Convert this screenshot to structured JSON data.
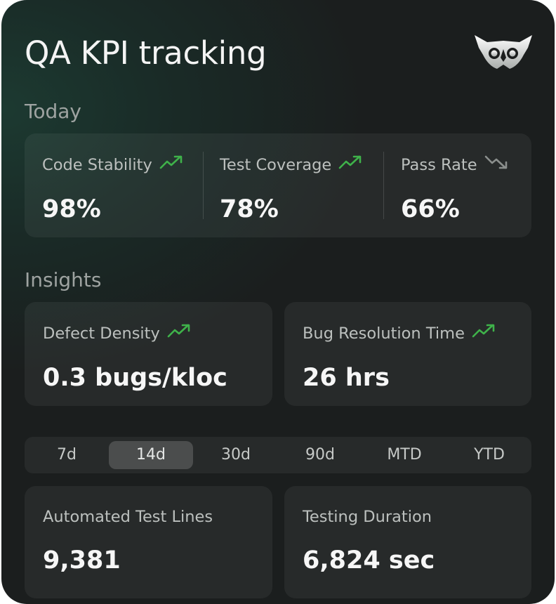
{
  "header": {
    "title": "QA KPI tracking",
    "logo_icon": "owl-logo-icon"
  },
  "today": {
    "label": "Today",
    "stats": [
      {
        "label": "Code Stability",
        "value": "98%",
        "trend": "up"
      },
      {
        "label": "Test Coverage",
        "value": "78%",
        "trend": "up"
      },
      {
        "label": "Pass Rate",
        "value": "66%",
        "trend": "down"
      }
    ]
  },
  "insights": {
    "label": "Insights",
    "cards": [
      {
        "label": "Defect Density",
        "value": "0.3 bugs/kloc",
        "trend": "up"
      },
      {
        "label": "Bug Resolution Time",
        "value": "26 hrs",
        "trend": "up"
      }
    ]
  },
  "ranges": {
    "options": [
      "7d",
      "14d",
      "30d",
      "90d",
      "MTD",
      "YTD"
    ],
    "selected": "14d"
  },
  "metrics": [
    {
      "label": "Automated Test Lines",
      "value": "9,381"
    },
    {
      "label": "Testing Duration",
      "value": "6,824 sec"
    }
  ],
  "colors": {
    "trend_up": "#3fb24a",
    "trend_down": "#8b8f8d",
    "panel": "#1b1d1d"
  }
}
